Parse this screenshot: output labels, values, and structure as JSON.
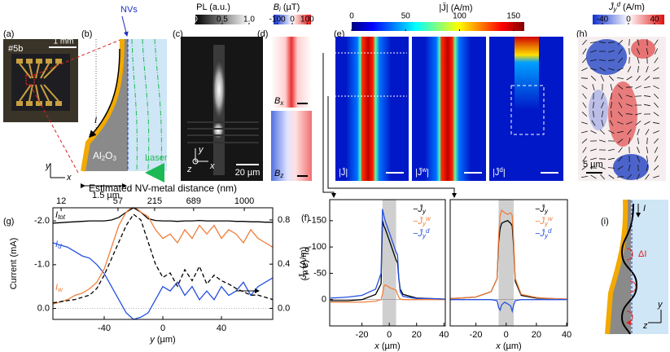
{
  "figure": {
    "panel_labels": {
      "a": "(a)",
      "b": "(b)",
      "c": "(c)",
      "d": "(d)",
      "e": "(e)",
      "h": "(h)",
      "g": "(g)",
      "f": "(f)",
      "i": "(i)"
    },
    "a": {
      "sample": "#5b",
      "scale_bar": "1 mm"
    },
    "b": {
      "nvs": "NVs",
      "current": "I",
      "material": [
        "Al",
        "2",
        "O",
        "3"
      ],
      "laser": "Laser",
      "width": "1.5 µm",
      "axis_y": "y",
      "axis_x": "x"
    },
    "c": {
      "colorbar_title": "PL (a.u.)",
      "colorbar_lim": [
        0,
        1
      ],
      "colorbar_ticks": [
        0,
        0.5,
        {
          "value": 1,
          "label": "1.0"
        }
      ],
      "scale_bar": "20 µm",
      "axes": [
        "z",
        "x",
        "y"
      ]
    },
    "d": {
      "colorbar_title": [
        "B",
        "i",
        " (µT)"
      ],
      "colorbar_lim": [
        -125,
        125
      ],
      "colorbar_ticks": [
        -100,
        0,
        100
      ],
      "maps": [
        [
          "B",
          "x"
        ],
        [
          "B",
          "z"
        ]
      ]
    },
    "e": {
      "colorbar_title": "|J̄| (A/m)",
      "colorbar_lim": [
        0,
        160
      ],
      "colorbar_ticks": [
        0,
        50,
        100,
        150
      ],
      "maps": [
        [
          "|J̄|",
          ""
        ],
        [
          "|J̄",
          "w",
          "|"
        ],
        [
          "|J̄",
          "d",
          "|"
        ]
      ]
    },
    "h": {
      "colorbar_title": [
        "J̄",
        "y",
        "d",
        " (A/m)"
      ],
      "colorbar_lim": [
        -55,
        55
      ],
      "colorbar_ticks": [
        -40,
        0,
        40
      ],
      "scale_bar": "5 µm"
    },
    "i": {
      "current": "I",
      "delta": "ΔI",
      "axis_z": "z",
      "axis_y": "y"
    }
  },
  "chart_data": [
    {
      "type": "line",
      "x_label": [
        "y",
        " (µm)"
      ],
      "y_label": "Current (mA)",
      "y2_label": "PL (a.u.)",
      "top_axis_label": "Estimated NV-metal distance (nm)",
      "top_ticks": [
        12,
        57,
        215,
        689,
        1000
      ],
      "top_tick_positions": [
        -69.4,
        -30.6,
        -5.6,
        21,
        55.6
      ],
      "x": [
        -75,
        -70,
        -65,
        -60,
        -55,
        -50,
        -45,
        -40,
        -35,
        -30,
        -25,
        -20,
        -15,
        -10,
        -5,
        0,
        5,
        10,
        15,
        20,
        25,
        30,
        35,
        40,
        45,
        50,
        55,
        60,
        65,
        70,
        75
      ],
      "xlim": [
        -75,
        75
      ],
      "xticks": [
        -40,
        0,
        40
      ],
      "ylim": [
        0.25,
        -2.3
      ],
      "yticks": [
        {
          "value": -2,
          "label": "-2.0"
        },
        {
          "value": -1,
          "label": "-1.0"
        },
        {
          "value": 0,
          "label": "0.0"
        }
      ],
      "y2lim": [
        -0.1,
        0.91
      ],
      "y2ticks": [
        0.8,
        0.4,
        {
          "value": 0,
          "label": "0.0"
        }
      ],
      "zero_line": true,
      "series": [
        {
          "name": "I",
          "name_sub": "tot",
          "color": "#000000",
          "values": [
            -1.95,
            -1.96,
            -1.97,
            -1.98,
            -1.99,
            -2.0,
            -2.0,
            -2.0,
            -2.02,
            -2.08,
            -2.2,
            -2.3,
            -2.2,
            -2.05,
            -2.01,
            -2.0,
            -2.0,
            -1.99,
            -2.0,
            -2.0,
            -2.01,
            -2.0,
            -2.0,
            -2.0,
            -2.0,
            -1.99,
            -1.99,
            -1.98,
            -1.98,
            -1.97,
            -1.97
          ]
        },
        {
          "name": "I",
          "name_sub": "d",
          "color": "#2450e0",
          "values": [
            -1.5,
            -1.45,
            -1.4,
            -1.3,
            -1.2,
            -1.15,
            -1.0,
            -0.8,
            -0.5,
            -0.2,
            0.1,
            0.25,
            0.2,
            0.1,
            -0.2,
            -0.5,
            -0.4,
            -0.6,
            -0.3,
            -0.5,
            -0.2,
            -0.4,
            -0.2,
            -0.5,
            -0.3,
            -0.4,
            -0.6,
            -0.3,
            -0.5,
            -0.6,
            -0.7
          ]
        },
        {
          "name": "I",
          "name_sub": "w",
          "color": "#f07f3c",
          "values": [
            -0.1,
            -0.15,
            -0.2,
            -0.3,
            -0.35,
            -0.45,
            -0.6,
            -0.9,
            -1.4,
            -1.9,
            -2.2,
            -2.35,
            -2.2,
            -2.1,
            -1.8,
            -1.6,
            -1.7,
            -1.5,
            -1.8,
            -1.6,
            -1.9,
            -1.7,
            -1.9,
            -1.6,
            -1.8,
            -1.7,
            -1.5,
            -1.8,
            -1.6,
            -1.5,
            -1.4
          ]
        },
        {
          "color": "#000000",
          "style": "dashed",
          "axis": "y2",
          "values": [
            0.05,
            0.06,
            0.07,
            0.08,
            0.1,
            0.12,
            0.18,
            0.3,
            0.45,
            0.6,
            0.75,
            0.85,
            0.8,
            0.6,
            0.4,
            0.28,
            0.32,
            0.2,
            0.35,
            0.25,
            0.38,
            0.22,
            0.3,
            0.25,
            0.22,
            0.18,
            0.15,
            0.12,
            0.12,
            0.1,
            0.08
          ]
        }
      ]
    },
    {
      "type": "line",
      "x_label": [
        "x",
        " (µm)"
      ],
      "y_label": [
        "J̄",
        "y",
        " (A/m)"
      ],
      "x": [
        -43,
        -35,
        -30,
        -20,
        -10,
        -6,
        -5,
        -4,
        -3,
        -1,
        1,
        3,
        5,
        6,
        7,
        8,
        10,
        20,
        30,
        41
      ],
      "xlim": [
        -43.6,
        41
      ],
      "xticks": [
        -20,
        0,
        20,
        40
      ],
      "ylim": [
        50,
        -190
      ],
      "yticks": [
        -150,
        -100,
        -50,
        0
      ],
      "band": [
        -5,
        5
      ],
      "zero_line": true,
      "legend": "top-right",
      "series": [
        {
          "name": "−J̄",
          "name_sub": "y",
          "color": "#000000",
          "values": [
            2,
            2,
            2,
            0,
            -10,
            -30,
            -150,
            -140,
            -135,
            -120,
            -105,
            -90,
            -75,
            -70,
            -40,
            -20,
            -10,
            -3,
            -2,
            -1
          ]
        },
        {
          "name": "−J̄",
          "name_sub": "y",
          "name_sup": "w",
          "color": "#f07f3c",
          "values": [
            5,
            5,
            5,
            5,
            3,
            0,
            -10,
            -25,
            -28,
            -25,
            -22,
            -20,
            -18,
            -10,
            -5,
            -1,
            0,
            0,
            0,
            0
          ]
        },
        {
          "name": "−J̄",
          "name_sub": "y",
          "name_sup": "d",
          "color": "#2450e0",
          "values": [
            -3,
            -4,
            -5,
            -8,
            -20,
            -50,
            -172,
            -160,
            -150,
            -135,
            -120,
            -105,
            -90,
            -85,
            -40,
            -15,
            -6,
            -2,
            -2,
            -1
          ]
        }
      ]
    },
    {
      "type": "line",
      "x_label": [
        "x",
        " (µm)"
      ],
      "x": [
        -37,
        -30,
        -20,
        -10,
        -6,
        -5,
        -4,
        -3,
        -1,
        1,
        3,
        4,
        5,
        6,
        10,
        20,
        30,
        40
      ],
      "xlim": [
        -37,
        40.5
      ],
      "xticks": [
        -20,
        0,
        20,
        40
      ],
      "ylim": [
        50,
        -190
      ],
      "band": [
        -5,
        5
      ],
      "zero_line": true,
      "legend": "top-right",
      "series": [
        {
          "name": "−J̄",
          "name_sub": "y",
          "color": "#000000",
          "values": [
            -2,
            -3,
            -5,
            -15,
            -40,
            -110,
            -135,
            -145,
            -148,
            -150,
            -145,
            -140,
            -100,
            -35,
            -8,
            -3,
            -2,
            -1
          ]
        },
        {
          "name": "−J̄",
          "name_sub": "y",
          "name_sup": "w",
          "color": "#f07f3c",
          "values": [
            -2,
            -3,
            -5,
            -15,
            -40,
            -120,
            -160,
            -170,
            -165,
            -162,
            -165,
            -160,
            -110,
            -40,
            -10,
            -4,
            -2,
            -1
          ]
        },
        {
          "name": "−J̄",
          "name_sub": "y",
          "name_sup": "d",
          "color": "#2450e0",
          "values": [
            0,
            0,
            0,
            0,
            2,
            15,
            20,
            10,
            5,
            8,
            12,
            22,
            10,
            2,
            0,
            0,
            0,
            0
          ]
        }
      ]
    }
  ]
}
